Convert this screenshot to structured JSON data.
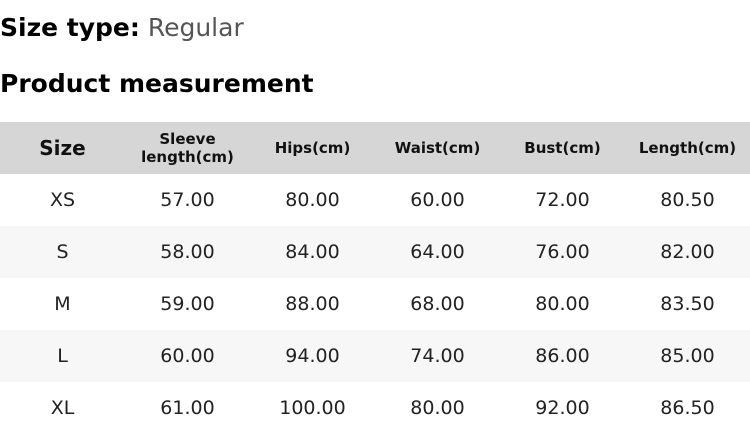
{
  "size_type": {
    "label": "Size type:",
    "value": "Regular"
  },
  "section_title": "Product measurement",
  "table": {
    "headers": [
      "Size",
      "Sleeve\nlength(cm)",
      "Hips(cm)",
      "Waist(cm)",
      "Bust(cm)",
      "Length(cm)"
    ],
    "rows": [
      [
        "XS",
        "57.00",
        "80.00",
        "60.00",
        "72.00",
        "80.50"
      ],
      [
        "S",
        "58.00",
        "84.00",
        "64.00",
        "76.00",
        "82.00"
      ],
      [
        "M",
        "59.00",
        "88.00",
        "68.00",
        "80.00",
        "83.50"
      ],
      [
        "L",
        "60.00",
        "94.00",
        "74.00",
        "86.00",
        "85.00"
      ],
      [
        "XL",
        "61.00",
        "100.00",
        "80.00",
        "92.00",
        "86.50"
      ]
    ]
  }
}
